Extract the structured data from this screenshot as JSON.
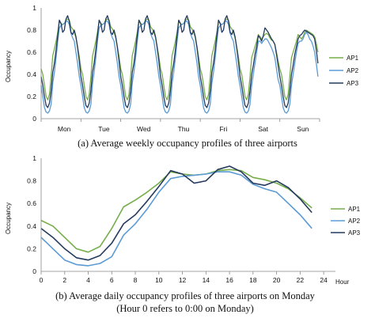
{
  "chart_data": [
    {
      "type": "line",
      "caption": "(a) Average weekly occupancy profiles of three airports",
      "ylabel": "Occupancy",
      "xlabel": "",
      "categories": [
        "Mon",
        "Tue",
        "Wed",
        "Thu",
        "Fri",
        "Sat",
        "Sun"
      ],
      "ylim": [
        0,
        1
      ],
      "yticks": [
        0,
        0.2,
        0.4,
        0.6,
        0.8,
        1
      ],
      "ytick_labels": [
        "0",
        "0.2",
        "0.4",
        "0.6",
        "0.8",
        "1"
      ],
      "hours_per_day": 24,
      "days": 7,
      "legend_placement": "right",
      "series": [
        {
          "name": "AP1",
          "color": "#77ad4a",
          "profiles": [
            [
              0.45,
              0.4,
              0.3,
              0.2,
              0.17,
              0.22,
              0.38,
              0.57,
              0.63,
              0.7,
              0.78,
              0.88,
              0.86,
              0.85,
              0.86,
              0.89,
              0.9,
              0.89,
              0.83,
              0.81,
              0.78,
              0.73,
              0.65,
              0.56
            ],
            [
              0.45,
              0.4,
              0.3,
              0.2,
              0.17,
              0.22,
              0.38,
              0.57,
              0.63,
              0.7,
              0.78,
              0.88,
              0.86,
              0.85,
              0.86,
              0.89,
              0.9,
              0.89,
              0.83,
              0.81,
              0.78,
              0.73,
              0.65,
              0.56
            ],
            [
              0.45,
              0.4,
              0.3,
              0.2,
              0.17,
              0.22,
              0.38,
              0.57,
              0.63,
              0.7,
              0.78,
              0.88,
              0.86,
              0.85,
              0.86,
              0.89,
              0.9,
              0.89,
              0.83,
              0.81,
              0.78,
              0.73,
              0.65,
              0.56
            ],
            [
              0.45,
              0.4,
              0.3,
              0.2,
              0.17,
              0.22,
              0.38,
              0.57,
              0.63,
              0.7,
              0.78,
              0.88,
              0.86,
              0.85,
              0.86,
              0.89,
              0.9,
              0.89,
              0.83,
              0.81,
              0.78,
              0.73,
              0.65,
              0.56
            ],
            [
              0.45,
              0.4,
              0.3,
              0.2,
              0.17,
              0.22,
              0.38,
              0.57,
              0.63,
              0.7,
              0.78,
              0.88,
              0.86,
              0.85,
              0.86,
              0.89,
              0.9,
              0.89,
              0.83,
              0.81,
              0.78,
              0.73,
              0.65,
              0.56
            ],
            [
              0.45,
              0.4,
              0.3,
              0.2,
              0.17,
              0.22,
              0.38,
              0.55,
              0.6,
              0.65,
              0.7,
              0.76,
              0.74,
              0.72,
              0.74,
              0.76,
              0.77,
              0.76,
              0.73,
              0.71,
              0.7,
              0.67,
              0.6,
              0.52
            ],
            [
              0.45,
              0.4,
              0.3,
              0.2,
              0.17,
              0.22,
              0.38,
              0.55,
              0.6,
              0.65,
              0.7,
              0.76,
              0.74,
              0.72,
              0.74,
              0.78,
              0.8,
              0.79,
              0.78,
              0.77,
              0.76,
              0.74,
              0.68,
              0.6
            ]
          ]
        },
        {
          "name": "AP2",
          "color": "#5b9bd5",
          "profiles": [
            [
              0.3,
              0.2,
              0.1,
              0.06,
              0.05,
              0.07,
              0.13,
              0.32,
              0.42,
              0.55,
              0.7,
              0.82,
              0.84,
              0.85,
              0.86,
              0.88,
              0.88,
              0.85,
              0.77,
              0.73,
              0.7,
              0.6,
              0.5,
              0.38
            ],
            [
              0.3,
              0.2,
              0.1,
              0.06,
              0.05,
              0.07,
              0.13,
              0.32,
              0.42,
              0.55,
              0.7,
              0.82,
              0.84,
              0.85,
              0.86,
              0.88,
              0.88,
              0.85,
              0.77,
              0.73,
              0.7,
              0.6,
              0.5,
              0.38
            ],
            [
              0.3,
              0.2,
              0.1,
              0.06,
              0.05,
              0.07,
              0.13,
              0.32,
              0.42,
              0.55,
              0.7,
              0.82,
              0.84,
              0.85,
              0.86,
              0.88,
              0.88,
              0.85,
              0.77,
              0.73,
              0.7,
              0.6,
              0.5,
              0.38
            ],
            [
              0.3,
              0.2,
              0.1,
              0.06,
              0.05,
              0.07,
              0.13,
              0.32,
              0.42,
              0.55,
              0.7,
              0.82,
              0.84,
              0.85,
              0.86,
              0.88,
              0.88,
              0.85,
              0.77,
              0.73,
              0.7,
              0.6,
              0.5,
              0.38
            ],
            [
              0.3,
              0.2,
              0.1,
              0.06,
              0.05,
              0.07,
              0.13,
              0.32,
              0.42,
              0.55,
              0.7,
              0.82,
              0.84,
              0.85,
              0.86,
              0.88,
              0.88,
              0.85,
              0.77,
              0.73,
              0.7,
              0.6,
              0.5,
              0.38
            ],
            [
              0.3,
              0.2,
              0.1,
              0.06,
              0.05,
              0.07,
              0.13,
              0.3,
              0.4,
              0.5,
              0.6,
              0.7,
              0.7,
              0.68,
              0.7,
              0.72,
              0.72,
              0.7,
              0.67,
              0.64,
              0.6,
              0.55,
              0.45,
              0.35
            ],
            [
              0.3,
              0.2,
              0.1,
              0.06,
              0.05,
              0.07,
              0.13,
              0.3,
              0.4,
              0.5,
              0.6,
              0.68,
              0.7,
              0.7,
              0.72,
              0.76,
              0.78,
              0.76,
              0.72,
              0.7,
              0.66,
              0.6,
              0.5,
              0.38
            ]
          ]
        },
        {
          "name": "AP3",
          "color": "#243a5e",
          "profiles": [
            [
              0.38,
              0.3,
              0.2,
              0.12,
              0.1,
              0.14,
              0.25,
              0.42,
              0.5,
              0.62,
              0.75,
              0.89,
              0.86,
              0.78,
              0.8,
              0.9,
              0.93,
              0.88,
              0.78,
              0.76,
              0.8,
              0.74,
              0.64,
              0.52
            ],
            [
              0.38,
              0.3,
              0.2,
              0.12,
              0.1,
              0.14,
              0.25,
              0.42,
              0.5,
              0.62,
              0.75,
              0.89,
              0.86,
              0.78,
              0.8,
              0.9,
              0.93,
              0.88,
              0.78,
              0.76,
              0.8,
              0.74,
              0.64,
              0.52
            ],
            [
              0.38,
              0.3,
              0.2,
              0.12,
              0.1,
              0.14,
              0.25,
              0.42,
              0.5,
              0.62,
              0.75,
              0.89,
              0.86,
              0.78,
              0.8,
              0.9,
              0.93,
              0.88,
              0.78,
              0.76,
              0.8,
              0.74,
              0.64,
              0.52
            ],
            [
              0.38,
              0.3,
              0.2,
              0.12,
              0.1,
              0.14,
              0.25,
              0.42,
              0.5,
              0.62,
              0.75,
              0.89,
              0.86,
              0.78,
              0.8,
              0.9,
              0.93,
              0.88,
              0.78,
              0.76,
              0.8,
              0.74,
              0.64,
              0.52
            ],
            [
              0.38,
              0.3,
              0.2,
              0.12,
              0.1,
              0.14,
              0.25,
              0.42,
              0.5,
              0.62,
              0.75,
              0.89,
              0.86,
              0.78,
              0.8,
              0.9,
              0.93,
              0.88,
              0.78,
              0.76,
              0.8,
              0.74,
              0.64,
              0.52
            ],
            [
              0.38,
              0.3,
              0.2,
              0.12,
              0.1,
              0.14,
              0.25,
              0.4,
              0.48,
              0.58,
              0.65,
              0.75,
              0.73,
              0.7,
              0.75,
              0.82,
              0.8,
              0.78,
              0.75,
              0.72,
              0.7,
              0.67,
              0.58,
              0.48
            ],
            [
              0.38,
              0.3,
              0.2,
              0.12,
              0.1,
              0.14,
              0.25,
              0.4,
              0.48,
              0.58,
              0.65,
              0.72,
              0.75,
              0.76,
              0.78,
              0.8,
              0.79,
              0.78,
              0.77,
              0.76,
              0.75,
              0.72,
              0.62,
              0.5
            ]
          ]
        }
      ]
    },
    {
      "type": "line",
      "caption_line1": "(b) Average daily occupancy profiles of three airports on Monday",
      "caption_line2": "(Hour 0 refers to 0:00 on Monday)",
      "ylabel": "Occupancy",
      "xlabel": "Hour",
      "x": [
        0,
        1,
        2,
        3,
        4,
        5,
        6,
        7,
        8,
        9,
        10,
        11,
        12,
        13,
        14,
        15,
        16,
        17,
        18,
        19,
        20,
        21,
        22,
        23
      ],
      "xlim": [
        0,
        25
      ],
      "xticks": [
        0,
        2,
        4,
        6,
        8,
        10,
        12,
        14,
        16,
        18,
        20,
        22,
        24
      ],
      "xtick_labels": [
        "0",
        "2",
        "4",
        "6",
        "8",
        "10",
        "12",
        "14",
        "16",
        "18",
        "20",
        "22",
        "24"
      ],
      "ylim": [
        0,
        1
      ],
      "yticks": [
        0,
        0.2,
        0.4,
        0.6,
        0.8,
        1
      ],
      "ytick_labels": [
        "0",
        "0.2",
        "0.4",
        "0.6",
        "0.8",
        "1"
      ],
      "legend_placement": "right",
      "series": [
        {
          "name": "AP1",
          "color": "#77ad4a",
          "values": [
            0.45,
            0.4,
            0.3,
            0.2,
            0.17,
            0.22,
            0.38,
            0.57,
            0.63,
            0.7,
            0.78,
            0.88,
            0.86,
            0.85,
            0.86,
            0.89,
            0.9,
            0.89,
            0.83,
            0.81,
            0.78,
            0.73,
            0.65,
            0.56
          ]
        },
        {
          "name": "AP2",
          "color": "#5b9bd5",
          "values": [
            0.3,
            0.2,
            0.1,
            0.06,
            0.05,
            0.07,
            0.13,
            0.32,
            0.42,
            0.55,
            0.7,
            0.82,
            0.84,
            0.85,
            0.86,
            0.88,
            0.88,
            0.85,
            0.77,
            0.73,
            0.7,
            0.6,
            0.5,
            0.38
          ]
        },
        {
          "name": "AP3",
          "color": "#243a5e",
          "values": [
            0.38,
            0.3,
            0.2,
            0.12,
            0.1,
            0.14,
            0.25,
            0.42,
            0.5,
            0.62,
            0.75,
            0.89,
            0.86,
            0.78,
            0.8,
            0.9,
            0.93,
            0.88,
            0.78,
            0.76,
            0.8,
            0.74,
            0.64,
            0.52
          ]
        }
      ]
    }
  ]
}
